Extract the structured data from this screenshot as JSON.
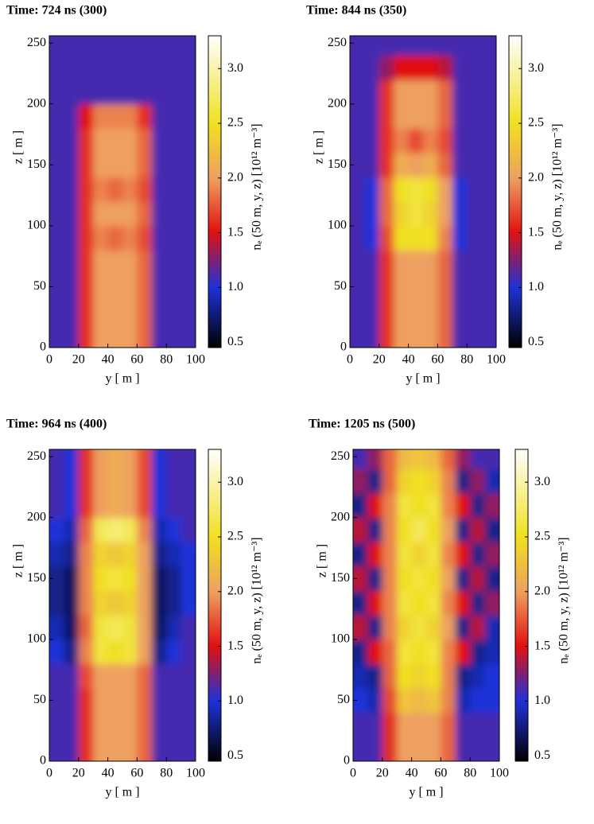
{
  "chart_data": [
    {
      "type": "heatmap",
      "title": "Time: 724 ns (300)",
      "xlabel": "y [ m ]",
      "ylabel": "z [ m ]",
      "colorbar_label": "nₑ (50 m, y, z) [10¹² m⁻³]",
      "xbins": [
        0,
        10,
        20,
        30,
        40,
        50,
        60,
        70,
        80,
        90,
        100
      ],
      "zbins": [
        0,
        20,
        40,
        60,
        80,
        100,
        120,
        140,
        160,
        180,
        200,
        220,
        240,
        256
      ],
      "xlim": [
        0,
        100
      ],
      "ylim": [
        0,
        256
      ],
      "xticks": [
        0,
        20,
        40,
        60,
        80,
        100
      ],
      "yticks": [
        0,
        50,
        100,
        150,
        200,
        250
      ],
      "clim": [
        0.45,
        3.3
      ],
      "cticks": [
        {
          "value": 0.5,
          "label": "0.5"
        },
        {
          "value": 1,
          "label": "1.0"
        },
        {
          "value": 1.5,
          "label": "1.5"
        },
        {
          "value": 2,
          "label": "2.0"
        },
        {
          "value": 2.5,
          "label": "2.5"
        },
        {
          "value": 3,
          "label": "3.0"
        }
      ],
      "colorscale": [
        [
          0.45,
          "#000000"
        ],
        [
          1.0,
          "#1e32d8"
        ],
        [
          1.5,
          "#e01010"
        ],
        [
          2.0,
          "#eea060"
        ],
        [
          2.5,
          "#f0e020"
        ],
        [
          3.3,
          "#ffffff"
        ]
      ],
      "z": [
        [
          1.1,
          1.1,
          1.6,
          2.0,
          2.0,
          2.0,
          1.8,
          1.1,
          1.1,
          1.1
        ],
        [
          1.1,
          1.1,
          1.6,
          2.0,
          2.0,
          2.0,
          1.8,
          1.1,
          1.1,
          1.1
        ],
        [
          1.1,
          1.1,
          1.6,
          2.0,
          2.0,
          2.0,
          1.8,
          1.1,
          1.1,
          1.1
        ],
        [
          1.1,
          1.1,
          1.6,
          2.0,
          2.0,
          2.0,
          1.8,
          1.1,
          1.1,
          1.1
        ],
        [
          1.1,
          1.1,
          1.6,
          1.9,
          1.8,
          1.9,
          1.7,
          1.1,
          1.1,
          1.1
        ],
        [
          1.1,
          1.1,
          1.6,
          2.0,
          2.0,
          2.0,
          1.8,
          1.1,
          1.1,
          1.1
        ],
        [
          1.1,
          1.1,
          1.6,
          1.9,
          1.8,
          1.9,
          1.7,
          1.1,
          1.1,
          1.1
        ],
        [
          1.1,
          1.1,
          1.6,
          2.0,
          2.0,
          2.0,
          1.8,
          1.1,
          1.1,
          1.1
        ],
        [
          1.1,
          1.1,
          1.6,
          2.0,
          2.0,
          2.0,
          1.8,
          1.1,
          1.1,
          1.1
        ],
        [
          1.1,
          1.1,
          1.5,
          1.9,
          1.9,
          1.9,
          1.6,
          1.1,
          1.1,
          1.1
        ],
        [
          1.1,
          1.1,
          1.1,
          1.1,
          1.1,
          1.1,
          1.1,
          1.1,
          1.1,
          1.1
        ],
        [
          1.1,
          1.1,
          1.1,
          1.1,
          1.1,
          1.1,
          1.1,
          1.1,
          1.1,
          1.1
        ],
        [
          1.1,
          1.1,
          1.1,
          1.1,
          1.1,
          1.1,
          1.1,
          1.1,
          1.1,
          1.1
        ]
      ]
    },
    {
      "type": "heatmap",
      "title": "Time: 844 ns (350)",
      "xlabel": "y [ m ]",
      "ylabel": "z [ m ]",
      "colorbar_label": "nₑ (50 m, y, z) [10¹² m⁻³]",
      "xbins": [
        0,
        10,
        20,
        30,
        40,
        50,
        60,
        70,
        80,
        90,
        100
      ],
      "zbins": [
        0,
        20,
        40,
        60,
        80,
        100,
        120,
        140,
        160,
        180,
        200,
        220,
        240,
        256
      ],
      "xlim": [
        0,
        100
      ],
      "ylim": [
        0,
        256
      ],
      "xticks": [
        0,
        20,
        40,
        60,
        80,
        100
      ],
      "yticks": [
        0,
        50,
        100,
        150,
        200,
        250
      ],
      "clim": [
        0.45,
        3.3
      ],
      "cticks": [
        {
          "value": 0.5,
          "label": "0.5"
        },
        {
          "value": 1,
          "label": "1.0"
        },
        {
          "value": 1.5,
          "label": "1.5"
        },
        {
          "value": 2,
          "label": "2.0"
        },
        {
          "value": 2.5,
          "label": "2.5"
        },
        {
          "value": 3,
          "label": "3.0"
        }
      ],
      "colorscale": [
        [
          0.45,
          "#000000"
        ],
        [
          1.0,
          "#1e32d8"
        ],
        [
          1.5,
          "#e01010"
        ],
        [
          2.0,
          "#eea060"
        ],
        [
          2.5,
          "#f0e020"
        ],
        [
          3.3,
          "#ffffff"
        ]
      ],
      "z": [
        [
          1.1,
          1.1,
          1.6,
          2.0,
          2.0,
          2.0,
          1.8,
          1.1,
          1.1,
          1.1
        ],
        [
          1.1,
          1.1,
          1.6,
          2.0,
          2.0,
          2.0,
          1.8,
          1.1,
          1.1,
          1.1
        ],
        [
          1.1,
          1.1,
          1.6,
          2.0,
          2.0,
          2.0,
          1.8,
          1.1,
          1.1,
          1.1
        ],
        [
          1.1,
          1.1,
          1.6,
          2.0,
          2.0,
          2.0,
          1.8,
          1.1,
          1.1,
          1.1
        ],
        [
          1.1,
          1.0,
          1.7,
          2.5,
          2.5,
          2.5,
          1.9,
          1.0,
          1.1,
          1.1
        ],
        [
          1.1,
          1.0,
          1.8,
          2.4,
          2.6,
          2.4,
          2.0,
          1.0,
          1.1,
          1.1
        ],
        [
          1.1,
          1.0,
          1.8,
          2.5,
          2.6,
          2.5,
          2.0,
          1.0,
          1.1,
          1.1
        ],
        [
          1.1,
          1.1,
          1.6,
          2.1,
          2.0,
          2.1,
          1.8,
          1.1,
          1.1,
          1.1
        ],
        [
          1.1,
          1.1,
          1.6,
          1.9,
          1.7,
          1.9,
          1.7,
          1.1,
          1.1,
          1.1
        ],
        [
          1.1,
          1.1,
          1.6,
          2.0,
          2.0,
          2.0,
          1.8,
          1.1,
          1.1,
          1.1
        ],
        [
          1.1,
          1.1,
          1.6,
          2.0,
          2.0,
          2.0,
          1.8,
          1.1,
          1.1,
          1.1
        ],
        [
          1.1,
          1.1,
          1.3,
          1.5,
          1.5,
          1.5,
          1.4,
          1.1,
          1.1,
          1.1
        ],
        [
          1.1,
          1.1,
          1.1,
          1.1,
          1.1,
          1.1,
          1.1,
          1.1,
          1.1,
          1.1
        ]
      ]
    },
    {
      "type": "heatmap",
      "title": "Time: 964 ns (400)",
      "xlabel": "y [ m ]",
      "ylabel": "z [ m ]",
      "colorbar_label": "nₑ (50 m, y, z) [10¹² m⁻³]",
      "xbins": [
        0,
        10,
        20,
        30,
        40,
        50,
        60,
        70,
        80,
        90,
        100
      ],
      "zbins": [
        0,
        20,
        40,
        60,
        80,
        100,
        120,
        140,
        160,
        180,
        200,
        220,
        240,
        256
      ],
      "xlim": [
        0,
        100
      ],
      "ylim": [
        0,
        256
      ],
      "xticks": [
        0,
        20,
        40,
        60,
        80,
        100
      ],
      "yticks": [
        0,
        50,
        100,
        150,
        200,
        250
      ],
      "clim": [
        0.45,
        3.3
      ],
      "cticks": [
        {
          "value": 0.5,
          "label": "0.5"
        },
        {
          "value": 1,
          "label": "1.0"
        },
        {
          "value": 1.5,
          "label": "1.5"
        },
        {
          "value": 2,
          "label": "2.0"
        },
        {
          "value": 2.5,
          "label": "2.5"
        },
        {
          "value": 3,
          "label": "3.0"
        }
      ],
      "colorscale": [
        [
          0.45,
          "#000000"
        ],
        [
          1.0,
          "#1e32d8"
        ],
        [
          1.5,
          "#e01010"
        ],
        [
          2.0,
          "#eea060"
        ],
        [
          2.5,
          "#f0e020"
        ],
        [
          3.3,
          "#ffffff"
        ]
      ],
      "z": [
        [
          1.1,
          1.1,
          1.6,
          2.0,
          2.0,
          2.0,
          1.8,
          1.1,
          1.1,
          1.1
        ],
        [
          1.1,
          1.1,
          1.6,
          2.0,
          2.0,
          2.0,
          1.8,
          1.1,
          1.1,
          1.1
        ],
        [
          1.1,
          1.1,
          1.6,
          2.0,
          2.0,
          2.0,
          1.8,
          1.1,
          1.1,
          1.1
        ],
        [
          1.1,
          1.1,
          1.7,
          2.0,
          2.0,
          2.0,
          1.8,
          1.1,
          1.1,
          1.1
        ],
        [
          1.0,
          0.8,
          1.9,
          2.6,
          2.5,
          2.6,
          2.0,
          0.8,
          1.0,
          1.1
        ],
        [
          0.9,
          0.7,
          1.8,
          2.6,
          2.7,
          2.6,
          2.0,
          0.7,
          0.9,
          1.1
        ],
        [
          0.8,
          0.7,
          1.9,
          2.4,
          2.3,
          2.4,
          2.0,
          0.7,
          0.8,
          1.0
        ],
        [
          0.8,
          0.7,
          1.9,
          2.5,
          2.6,
          2.5,
          2.0,
          0.7,
          0.8,
          1.0
        ],
        [
          0.9,
          0.8,
          1.9,
          2.4,
          2.3,
          2.4,
          2.0,
          0.8,
          0.9,
          1.0
        ],
        [
          1.0,
          0.9,
          1.8,
          2.7,
          2.8,
          2.7,
          1.9,
          0.9,
          1.0,
          1.1
        ],
        [
          1.1,
          1.0,
          1.6,
          2.0,
          2.1,
          2.0,
          1.7,
          1.0,
          1.1,
          1.1
        ],
        [
          1.1,
          1.0,
          1.6,
          2.0,
          2.1,
          2.0,
          1.7,
          1.0,
          1.1,
          1.1
        ],
        [
          1.1,
          1.0,
          1.6,
          2.0,
          2.1,
          2.0,
          1.7,
          1.0,
          1.1,
          1.1
        ]
      ]
    },
    {
      "type": "heatmap",
      "title": "Time: 1205 ns (500)",
      "xlabel": "y [ m ]",
      "ylabel": "z [ m ]",
      "colorbar_label": "nₑ (50 m, y, z) [10¹² m⁻³]",
      "xbins": [
        0,
        10,
        20,
        30,
        40,
        50,
        60,
        70,
        80,
        90,
        100
      ],
      "zbins": [
        0,
        20,
        40,
        60,
        80,
        100,
        120,
        140,
        160,
        180,
        200,
        220,
        240,
        256
      ],
      "xlim": [
        0,
        100
      ],
      "ylim": [
        0,
        256
      ],
      "xticks": [
        0,
        20,
        40,
        60,
        80,
        100
      ],
      "yticks": [
        0,
        50,
        100,
        150,
        200,
        250
      ],
      "clim": [
        0.45,
        3.3
      ],
      "cticks": [
        {
          "value": 0.5,
          "label": "0.5"
        },
        {
          "value": 1,
          "label": "1.0"
        },
        {
          "value": 1.5,
          "label": "1.5"
        },
        {
          "value": 2,
          "label": "2.0"
        },
        {
          "value": 2.5,
          "label": "2.5"
        },
        {
          "value": 3,
          "label": "3.0"
        }
      ],
      "colorscale": [
        [
          0.45,
          "#000000"
        ],
        [
          1.0,
          "#1e32d8"
        ],
        [
          1.5,
          "#e01010"
        ],
        [
          2.0,
          "#eea060"
        ],
        [
          2.5,
          "#f0e020"
        ],
        [
          3.3,
          "#ffffff"
        ]
      ],
      "z": [
        [
          1.1,
          1.1,
          1.6,
          2.0,
          2.0,
          2.0,
          1.8,
          1.1,
          1.1,
          1.1
        ],
        [
          1.1,
          1.1,
          1.6,
          2.0,
          2.0,
          2.0,
          1.8,
          1.1,
          1.1,
          1.1
        ],
        [
          1.0,
          0.9,
          1.7,
          2.3,
          2.2,
          2.3,
          1.9,
          0.9,
          1.0,
          1.0
        ],
        [
          0.9,
          0.8,
          1.8,
          2.5,
          2.4,
          2.5,
          1.9,
          0.8,
          0.9,
          1.0
        ],
        [
          0.8,
          1.5,
          1.8,
          2.6,
          2.5,
          2.6,
          1.9,
          1.5,
          0.8,
          0.9
        ],
        [
          1.4,
          0.8,
          1.9,
          2.4,
          2.6,
          2.4,
          2.0,
          0.8,
          1.4,
          0.9
        ],
        [
          0.8,
          1.5,
          1.9,
          2.6,
          2.5,
          2.6,
          1.9,
          1.5,
          0.8,
          1.3
        ],
        [
          1.4,
          0.8,
          1.9,
          2.5,
          2.6,
          2.5,
          2.0,
          0.8,
          1.4,
          0.8
        ],
        [
          0.8,
          1.5,
          1.9,
          2.6,
          2.4,
          2.6,
          1.9,
          1.5,
          0.8,
          1.3
        ],
        [
          1.4,
          0.8,
          1.9,
          2.5,
          2.7,
          2.5,
          2.0,
          0.8,
          1.4,
          0.8
        ],
        [
          0.8,
          1.5,
          1.9,
          2.6,
          2.5,
          2.6,
          1.9,
          1.5,
          0.8,
          1.3
        ],
        [
          1.3,
          0.8,
          1.8,
          2.4,
          2.5,
          2.4,
          1.9,
          0.8,
          1.3,
          0.9
        ],
        [
          1.1,
          1.3,
          1.8,
          2.2,
          2.3,
          2.2,
          1.8,
          1.3,
          1.1,
          1.1
        ]
      ]
    }
  ]
}
